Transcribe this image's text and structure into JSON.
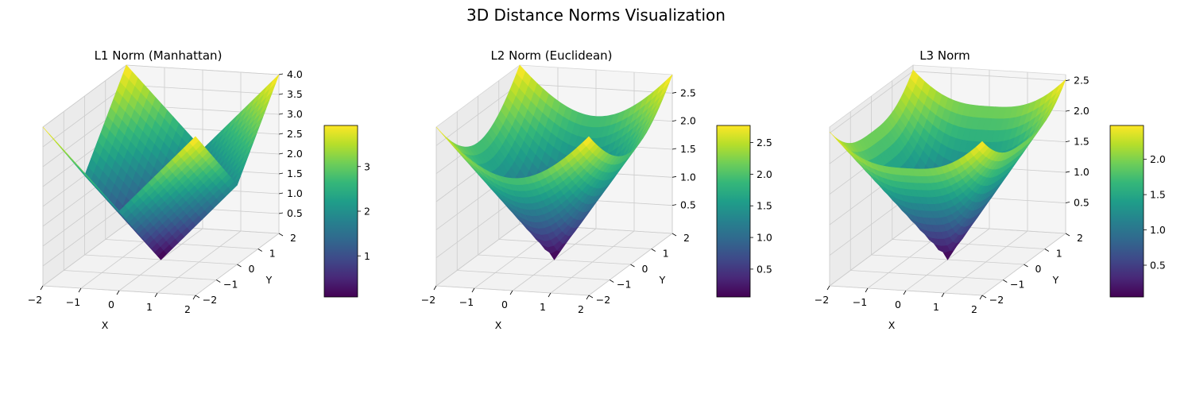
{
  "figure": {
    "title": "3D Distance Norms Visualization"
  },
  "chart_data": [
    {
      "type": "surface",
      "title": "L1 Norm (Manhattan)",
      "norm_p": 1,
      "formula": "z = |x| + |y|",
      "xlabel": "X",
      "ylabel": "Y",
      "x_range": [
        -2,
        2
      ],
      "y_range": [
        -2,
        2
      ],
      "grid_points": 50,
      "x_ticks": [
        "−2",
        "−1",
        "0",
        "1",
        "2"
      ],
      "y_ticks": [
        "−2",
        "−1",
        "0",
        "1",
        "2"
      ],
      "z_ticks": [
        "0.5",
        "1.0",
        "1.5",
        "2.0",
        "2.5",
        "3.0",
        "3.5",
        "4.0"
      ],
      "z_range": [
        0,
        4.0
      ],
      "colormap": "viridis",
      "colorbar_range": [
        0.08,
        3.92
      ],
      "colorbar_ticks": [
        "1",
        "2",
        "3"
      ],
      "colorbar_tick_values": [
        1,
        2,
        3
      ],
      "grid": true
    },
    {
      "type": "surface",
      "title": "L2 Norm (Euclidean)",
      "norm_p": 2,
      "formula": "z = sqrt(x^2 + y^2)",
      "xlabel": "X",
      "ylabel": "Y",
      "x_range": [
        -2,
        2
      ],
      "y_range": [
        -2,
        2
      ],
      "grid_points": 50,
      "x_ticks": [
        "−2",
        "−1",
        "0",
        "1",
        "2"
      ],
      "y_ticks": [
        "−2",
        "−1",
        "0",
        "1",
        "2"
      ],
      "z_ticks": [
        "0.5",
        "1.0",
        "1.5",
        "2.0",
        "2.5"
      ],
      "z_range": [
        0,
        2.83
      ],
      "colormap": "viridis",
      "colorbar_range": [
        0.06,
        2.77
      ],
      "colorbar_ticks": [
        "0.5",
        "1.0",
        "1.5",
        "2.0",
        "2.5"
      ],
      "colorbar_tick_values": [
        0.5,
        1.0,
        1.5,
        2.0,
        2.5
      ],
      "grid": true
    },
    {
      "type": "surface",
      "title": "L3 Norm",
      "norm_p": 3,
      "formula": "z = (|x|^3 + |y|^3)^(1/3)",
      "xlabel": "X",
      "ylabel": "Y",
      "x_range": [
        -2,
        2
      ],
      "y_range": [
        -2,
        2
      ],
      "grid_points": 50,
      "x_ticks": [
        "−2",
        "−1",
        "0",
        "1",
        "2"
      ],
      "y_ticks": [
        "−2",
        "−1",
        "0",
        "1",
        "2"
      ],
      "z_ticks": [
        "0.5",
        "1.0",
        "1.5",
        "2.0",
        "2.5"
      ],
      "z_range": [
        0,
        2.6
      ],
      "colormap": "viridis",
      "colorbar_range": [
        0.05,
        2.48
      ],
      "colorbar_ticks": [
        "0.5",
        "1.0",
        "1.5",
        "2.0"
      ],
      "colorbar_tick_values": [
        0.5,
        1.0,
        1.5,
        2.0
      ],
      "grid": true
    }
  ],
  "colors": {
    "pane": "#f2f2f2",
    "pane_edge": "#d6d6d6",
    "gridline": "#cccccc",
    "axis_line": "#000000",
    "viridis": [
      "#440154",
      "#482878",
      "#3e4a89",
      "#31688e",
      "#26828e",
      "#1f9e89",
      "#35b779",
      "#6ece58",
      "#b5de2b",
      "#fde725"
    ]
  }
}
